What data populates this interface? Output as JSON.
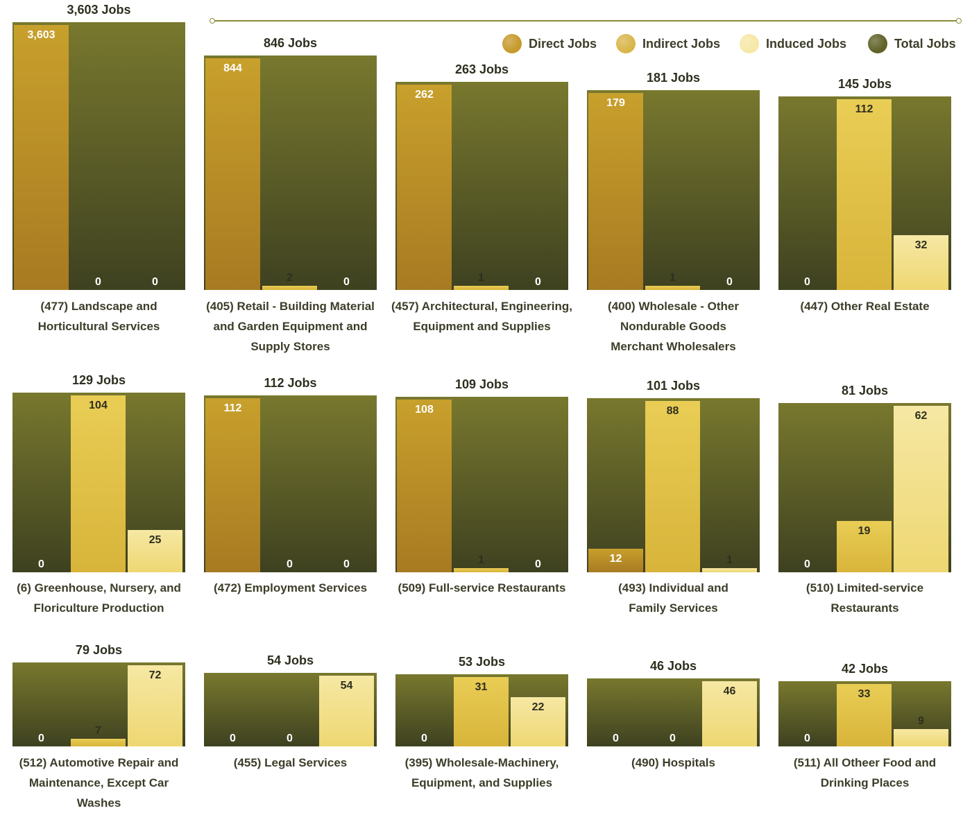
{
  "legend": [
    {
      "label": "Direct Jobs",
      "color": "#c79a2c",
      "icon": "circle"
    },
    {
      "label": "Indirect Jobs",
      "color": "#d9b64a",
      "icon": "circle"
    },
    {
      "label": "Induced  Jobs",
      "color": "#f6e8a6",
      "icon": "circle"
    },
    {
      "label": "Total Jobs",
      "color": "#606228",
      "icon": "circle"
    }
  ],
  "chart_data": {
    "type": "bar",
    "series": [
      {
        "name": "Direct Jobs",
        "color": "#b98a26"
      },
      {
        "name": "Indirect Jobs",
        "color": "#dfbf45"
      },
      {
        "name": "Induced  Jobs",
        "color": "#f2df8e"
      },
      {
        "name": "Total Jobs",
        "color": "#5d5f2a"
      }
    ],
    "panels": [
      {
        "category": [
          "(477) Landscape and",
          "Horticultural Services"
        ],
        "total": "3,603 Jobs",
        "values": [
          3603,
          0,
          0
        ],
        "labels": [
          "3,603",
          "0",
          "0"
        ]
      },
      {
        "category": [
          "(405) Retail - Building Material",
          "and Garden Equipment and",
          "Supply Stores"
        ],
        "total": "846 Jobs",
        "values": [
          844,
          2,
          0
        ],
        "labels": [
          "844",
          "2",
          "0"
        ]
      },
      {
        "category": [
          "(457) Architectural, Engineering,",
          "Equipment and Supplies"
        ],
        "total": "263 Jobs",
        "values": [
          262,
          1,
          0
        ],
        "labels": [
          "262",
          "1",
          "0"
        ]
      },
      {
        "category": [
          "(400) Wholesale - Other",
          "Nondurable Goods",
          "Merchant Wholesalers"
        ],
        "total": "181 Jobs",
        "values": [
          179,
          1,
          0
        ],
        "labels": [
          "179",
          "1",
          "0"
        ]
      },
      {
        "category": [
          "(447) Other Real Estate"
        ],
        "total": "145 Jobs",
        "values": [
          0,
          112,
          32
        ],
        "labels": [
          "0",
          "112",
          "32"
        ]
      },
      {
        "category": [
          "(6) Greenhouse, Nursery, and",
          "Floriculture Production"
        ],
        "total": "129 Jobs",
        "values": [
          0,
          104,
          25
        ],
        "labels": [
          "0",
          "104",
          "25"
        ]
      },
      {
        "category": [
          "(472) Employment Services"
        ],
        "total": "112 Jobs",
        "values": [
          112,
          0,
          0
        ],
        "labels": [
          "112",
          "0",
          "0"
        ]
      },
      {
        "category": [
          "(509) Full-service Restaurants"
        ],
        "total": "109 Jobs",
        "values": [
          108,
          1,
          0
        ],
        "labels": [
          "108",
          "1",
          "0"
        ]
      },
      {
        "category": [
          "(493) Individual and",
          "Family Services"
        ],
        "total": "101 Jobs",
        "values": [
          12,
          88,
          1
        ],
        "labels": [
          "12",
          "88",
          "1"
        ]
      },
      {
        "category": [
          "(510) Limited-service",
          "Restaurants"
        ],
        "total": "81 Jobs",
        "values": [
          0,
          19,
          62
        ],
        "labels": [
          "0",
          "19",
          "62"
        ]
      },
      {
        "category": [
          "(512) Automotive Repair and",
          "Maintenance, Except Car Washes"
        ],
        "total": "79 Jobs",
        "values": [
          0,
          7,
          72
        ],
        "labels": [
          "0",
          "7",
          "72"
        ]
      },
      {
        "category": [
          "(455) Legal Services"
        ],
        "total": "54 Jobs",
        "values": [
          0,
          0,
          54
        ],
        "labels": [
          "0",
          "0",
          "54"
        ]
      },
      {
        "category": [
          "(395) Wholesale-Machinery,",
          "Equipment, and Supplies"
        ],
        "total": "53 Jobs",
        "values": [
          0,
          31,
          22
        ],
        "labels": [
          "0",
          "31",
          "22"
        ]
      },
      {
        "category": [
          "(490) Hospitals"
        ],
        "total": "46 Jobs",
        "values": [
          0,
          0,
          46
        ],
        "labels": [
          "0",
          "0",
          "46"
        ]
      },
      {
        "category": [
          "(511) All Otheer Food and",
          "Drinking Places"
        ],
        "total": "42 Jobs",
        "values": [
          0,
          33,
          9
        ],
        "labels": [
          "0",
          "33",
          "9"
        ]
      }
    ]
  }
}
